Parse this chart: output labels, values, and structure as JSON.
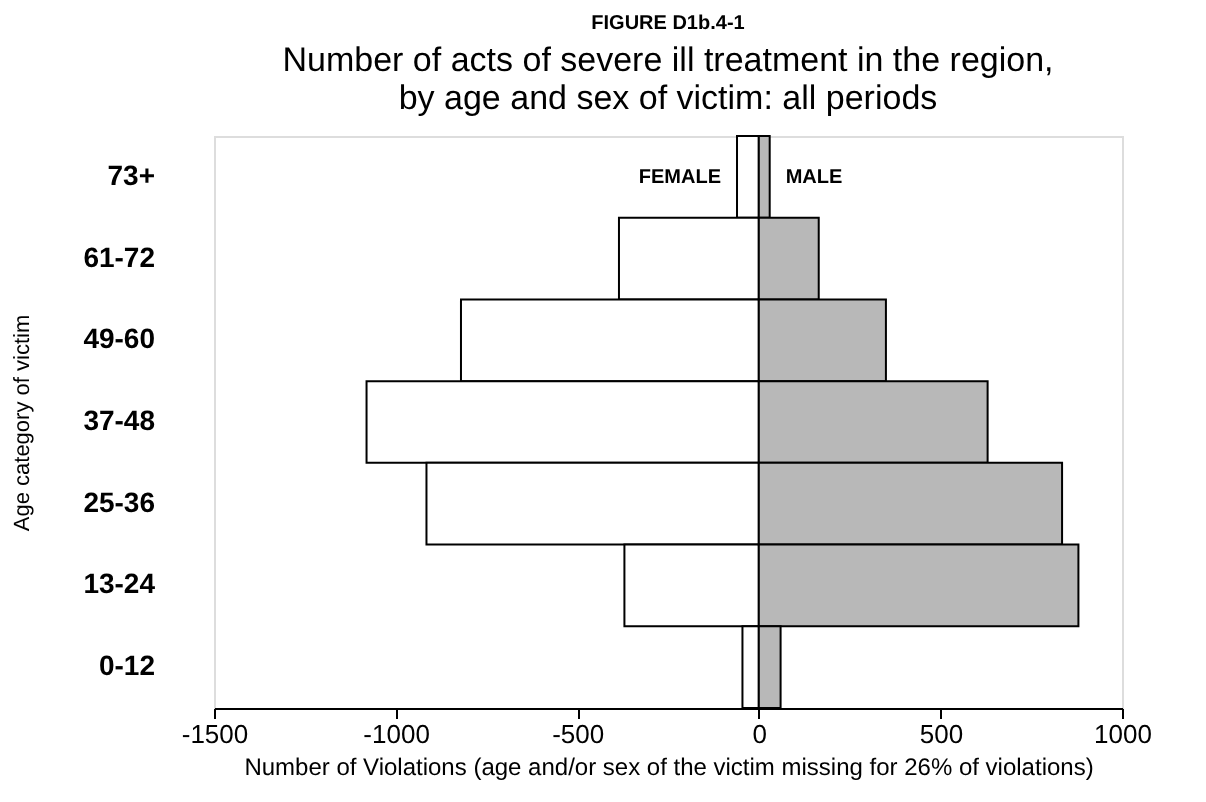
{
  "chart_data": {
    "type": "bar",
    "orientation": "horizontal",
    "stacked": true,
    "title": "Number of acts of severe ill treatment in the region,\nby age and sex of victim: all periods",
    "annotations": [
      "FIGURE D1b.4-1"
    ],
    "xlabel": "Number of Violations (age and/or sex of the victim missing for 26% of violations)",
    "ylabel": "Age category of victim",
    "categories": [
      "73+",
      "61-72",
      "49-60",
      "37-48",
      "25-36",
      "13-24",
      "0-12"
    ],
    "series": [
      {
        "name": "FEMALE",
        "color": "#ffffff",
        "values": [
          -60,
          -385,
          -820,
          -1080,
          -915,
          -370,
          -45
        ]
      },
      {
        "name": "MALE",
        "color": "#b8b8b8",
        "values": [
          30,
          165,
          350,
          630,
          835,
          880,
          60
        ]
      }
    ],
    "xlim": [
      -1500,
      1000
    ],
    "xticks": [
      -1500,
      -1000,
      -500,
      0,
      500,
      1000
    ],
    "grid": false,
    "legend": false
  }
}
